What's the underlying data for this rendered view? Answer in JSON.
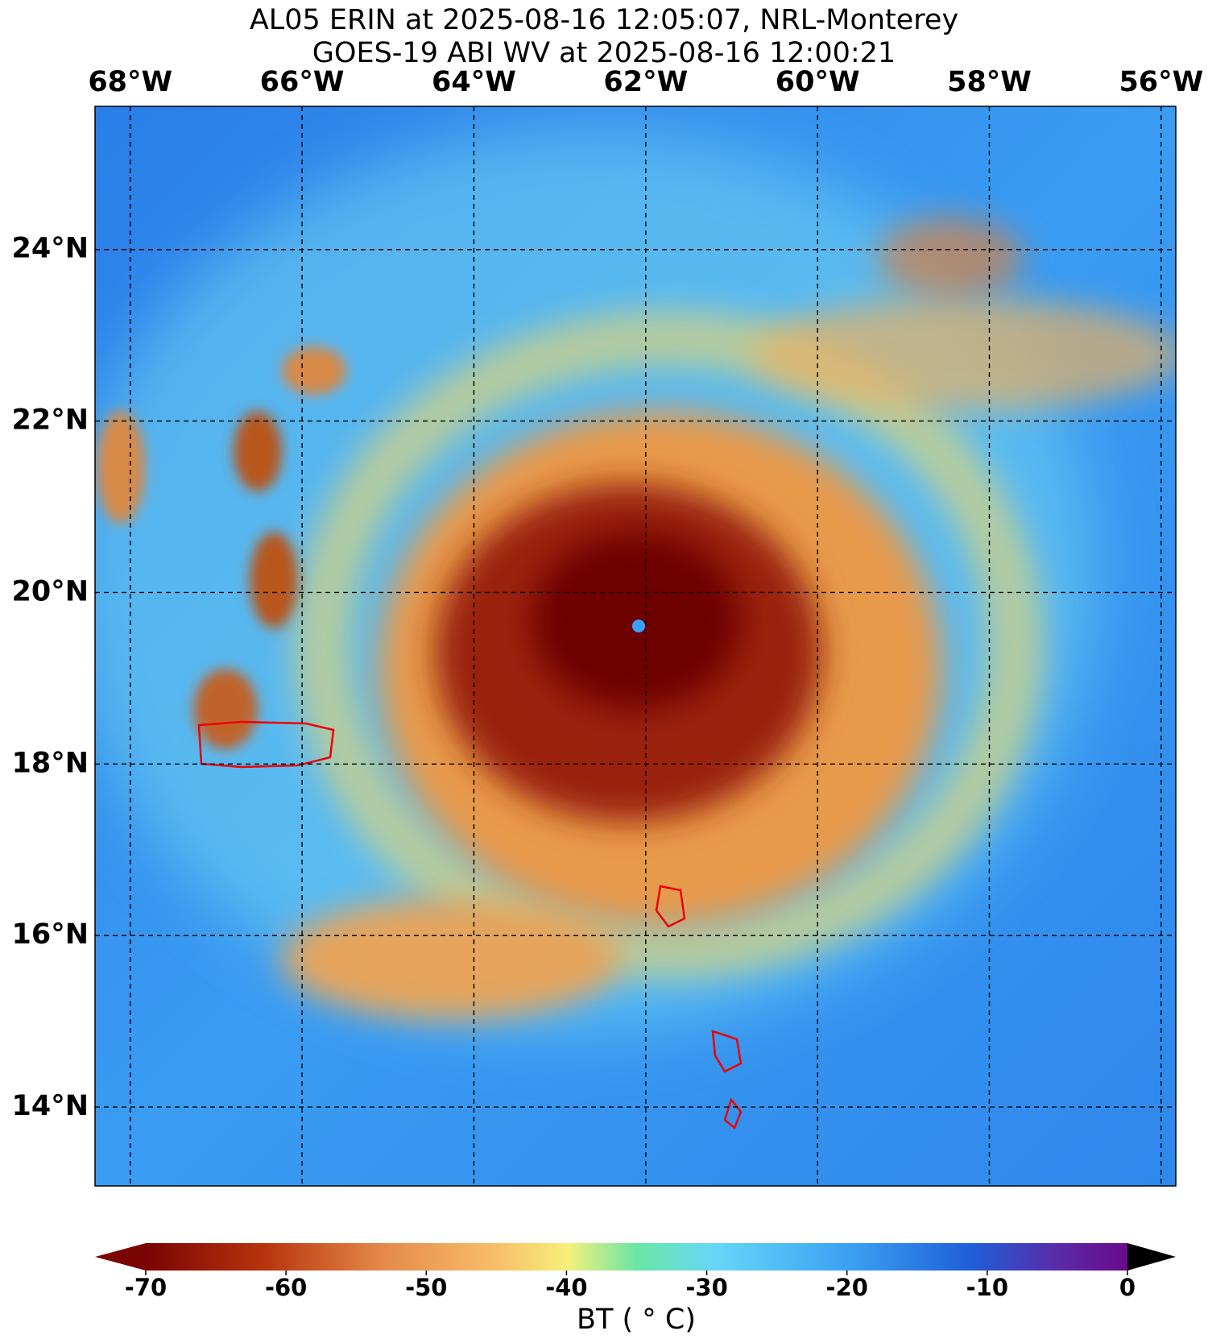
{
  "title": [
    "AL05 ERIN at 2025-08-16 12:05:07, NRL-Monterey",
    "GOES-19 ABI WV at 2025-08-16 12:00:21"
  ],
  "map": {
    "lonlim": [
      -68.41,
      -55.83
    ],
    "latlim": [
      13.08,
      25.67
    ],
    "lon_ticks": [
      {
        "value": -68,
        "label": "68°W"
      },
      {
        "value": -66,
        "label": "66°W"
      },
      {
        "value": -64,
        "label": "64°W"
      },
      {
        "value": -62,
        "label": "62°W"
      },
      {
        "value": -60,
        "label": "60°W"
      },
      {
        "value": -58,
        "label": "58°W"
      },
      {
        "value": -56,
        "label": "56°W"
      }
    ],
    "lat_ticks": [
      {
        "value": 14,
        "label": "14°N"
      },
      {
        "value": 16,
        "label": "16°N"
      },
      {
        "value": 18,
        "label": "18°N"
      },
      {
        "value": 20,
        "label": "20°N"
      },
      {
        "value": 22,
        "label": "22°N"
      },
      {
        "value": 24,
        "label": "24°N"
      }
    ],
    "grid": true
  },
  "colorbar": {
    "lim": [
      -70,
      0
    ],
    "ticks": [
      -70,
      -60,
      -50,
      -40,
      -30,
      -20,
      -10,
      0
    ],
    "label": "BT ( ° C)"
  }
}
